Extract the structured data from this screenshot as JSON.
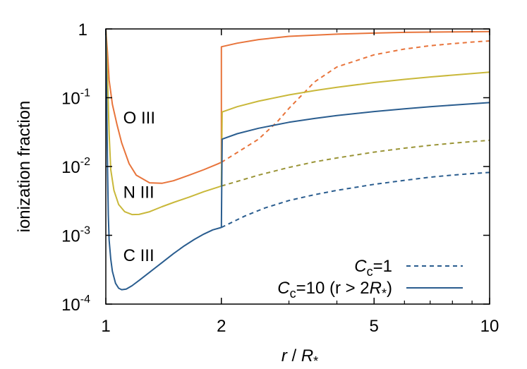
{
  "chart_data": {
    "type": "line",
    "x_scale": "log",
    "y_scale": "log",
    "xlim": [
      1,
      10
    ],
    "ylim": [
      0.0001,
      1
    ],
    "xlabel": "r / R*",
    "xlabel_parts": {
      "r": "r",
      "slash": " / ",
      "R": "R",
      "sub": "*"
    },
    "ylabel": "ionization fraction",
    "x_ticks": [
      {
        "value": 1,
        "label": "1"
      },
      {
        "value": 2,
        "label": "2"
      },
      {
        "value": 5,
        "label": "5"
      },
      {
        "value": 10,
        "label": "10"
      }
    ],
    "y_ticks": [
      {
        "value": 1,
        "base": "1",
        "exp": ""
      },
      {
        "value": 0.1,
        "base": "10",
        "exp": "-1"
      },
      {
        "value": 0.01,
        "base": "10",
        "exp": "-2"
      },
      {
        "value": 0.001,
        "base": "10",
        "exp": "-3"
      },
      {
        "value": 0.0001,
        "base": "10",
        "exp": "-4"
      }
    ],
    "legend": {
      "position": "bottom-right",
      "entries": [
        {
          "name": "Cc=1",
          "label_C": "C",
          "label_sub": "c",
          "label_rest": "=1",
          "dash": "dashed"
        },
        {
          "name": "Cc=10 (r > 2R*)",
          "label_C": "C",
          "label_sub": "c",
          "label_rest": "=10 (r > 2",
          "label_R": "R",
          "label_Rsub": "*",
          "label_close": ")",
          "dash": "solid"
        }
      ]
    },
    "annotations": [
      {
        "text": "O III",
        "x": 1.11,
        "y": 0.042
      },
      {
        "text": "N III",
        "x": 1.11,
        "y": 0.0035
      },
      {
        "text": "C III",
        "x": 1.11,
        "y": 0.00042
      }
    ],
    "series": [
      {
        "name": "O III (Cc=1, r<2)",
        "color": "#e8743b",
        "dash": "solid",
        "x": [
          1.0,
          1.01,
          1.02,
          1.04,
          1.07,
          1.1,
          1.15,
          1.2,
          1.3,
          1.4,
          1.5,
          1.65,
          1.8,
          1.95,
          2.0
        ],
        "y": [
          1.0,
          0.45,
          0.18,
          0.08,
          0.04,
          0.022,
          0.011,
          0.0075,
          0.0058,
          0.0057,
          0.0062,
          0.0075,
          0.009,
          0.0108,
          0.0115
        ]
      },
      {
        "name": "O III (Cc=1, r>2)",
        "color": "#e8743b",
        "dash": "dashed",
        "x": [
          2.0,
          2.2,
          2.5,
          2.8,
          3.0,
          3.5,
          4.0,
          5.0,
          6.0,
          7.0,
          8.0,
          9.0,
          10.0
        ],
        "y": [
          0.0115,
          0.016,
          0.025,
          0.045,
          0.07,
          0.17,
          0.28,
          0.42,
          0.51,
          0.57,
          0.61,
          0.645,
          0.67
        ]
      },
      {
        "name": "O III (Cc=10)",
        "color": "#e8743b",
        "dash": "solid",
        "x": [
          2.0,
          2.0,
          2.2,
          2.5,
          3.0,
          4.0,
          5.0,
          6.0,
          7.0,
          8.0,
          9.0,
          10.0
        ],
        "y": [
          0.0115,
          0.55,
          0.62,
          0.7,
          0.78,
          0.84,
          0.87,
          0.89,
          0.9,
          0.905,
          0.91,
          0.915
        ]
      },
      {
        "name": "N III (Cc=1, r<2)",
        "color": "#c9b83a",
        "dash": "solid",
        "x": [
          1.0,
          1.01,
          1.02,
          1.03,
          1.05,
          1.08,
          1.12,
          1.17,
          1.22,
          1.3,
          1.4,
          1.5,
          1.65,
          1.8,
          2.0
        ],
        "y": [
          1.0,
          0.2,
          0.03,
          0.009,
          0.0045,
          0.0028,
          0.0022,
          0.002,
          0.00201,
          0.0022,
          0.0026,
          0.003,
          0.0036,
          0.0043,
          0.0052
        ]
      },
      {
        "name": "N III (Cc=1, r>2)",
        "color": "#9a9436",
        "dash": "dashed",
        "x": [
          2.0,
          2.5,
          3.0,
          3.5,
          4.0,
          5.0,
          6.0,
          7.0,
          8.0,
          9.0,
          10.0
        ],
        "y": [
          0.0052,
          0.0075,
          0.0097,
          0.0117,
          0.0133,
          0.0162,
          0.0185,
          0.0203,
          0.0218,
          0.023,
          0.024
        ]
      },
      {
        "name": "N III (Cc=10)",
        "color": "#c9b83a",
        "dash": "solid",
        "x": [
          2.0,
          2.01,
          2.2,
          2.5,
          3.0,
          3.5,
          4.0,
          5.0,
          6.0,
          7.0,
          8.0,
          10.0
        ],
        "y": [
          0.0052,
          0.062,
          0.074,
          0.089,
          0.11,
          0.127,
          0.142,
          0.166,
          0.185,
          0.2,
          0.213,
          0.235
        ]
      },
      {
        "name": "C III (Cc=1, r<2)",
        "color": "#2a5d8f",
        "dash": "solid",
        "x": [
          1.0,
          1.005,
          1.01,
          1.015,
          1.02,
          1.03,
          1.04,
          1.06,
          1.08,
          1.1,
          1.13,
          1.17,
          1.22,
          1.3,
          1.4,
          1.5,
          1.6,
          1.7,
          1.8,
          1.9,
          2.0
        ],
        "y": [
          1.0,
          0.1,
          0.01,
          0.002,
          0.00085,
          0.00045,
          0.0003,
          0.0002,
          0.00017,
          0.000162,
          0.000165,
          0.000185,
          0.00022,
          0.00029,
          0.0004,
          0.00054,
          0.0007,
          0.00087,
          0.00104,
          0.0012,
          0.0013
        ]
      },
      {
        "name": "C III (Cc=1, r>2)",
        "color": "#2a5d8f",
        "dash": "dashed",
        "x": [
          2.0,
          2.3,
          2.6,
          3.0,
          3.5,
          4.0,
          5.0,
          6.0,
          7.0,
          8.0,
          9.0,
          10.0
        ],
        "y": [
          0.0013,
          0.0019,
          0.0025,
          0.0032,
          0.0039,
          0.0045,
          0.0055,
          0.0063,
          0.007,
          0.0075,
          0.0079,
          0.0082
        ]
      },
      {
        "name": "C III (Cc=10)",
        "color": "#2a5d8f",
        "dash": "solid",
        "x": [
          2.0,
          2.01,
          2.2,
          2.5,
          3.0,
          3.5,
          4.0,
          5.0,
          6.0,
          7.0,
          8.0,
          10.0
        ],
        "y": [
          0.0013,
          0.025,
          0.03,
          0.036,
          0.044,
          0.05,
          0.055,
          0.063,
          0.069,
          0.074,
          0.078,
          0.085
        ]
      }
    ]
  }
}
